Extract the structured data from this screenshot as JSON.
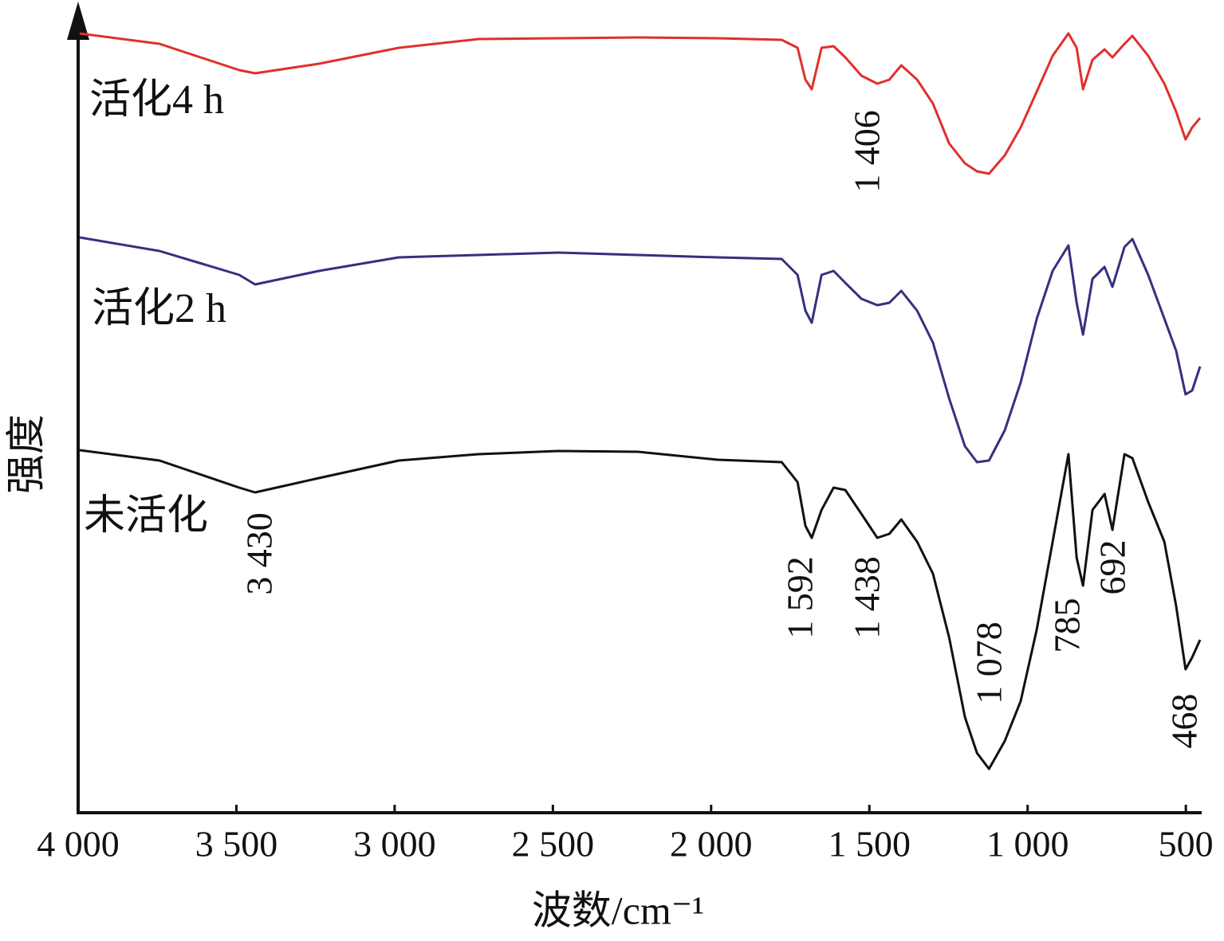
{
  "chart_data": {
    "type": "line",
    "x_label": "波数/cm⁻¹",
    "y_label": "强度",
    "x": [
      3995,
      3743,
      3491,
      3441,
      3239,
      2987,
      2735,
      2483,
      2231,
      1979,
      1777,
      1727,
      1702,
      1682,
      1651,
      1613,
      1576,
      1525,
      1475,
      1437,
      1399,
      1349,
      1299,
      1248,
      1198,
      1160,
      1122,
      1072,
      1022,
      971,
      921,
      871,
      845,
      825,
      795,
      757,
      732,
      694,
      669,
      619,
      568,
      531,
      501,
      480,
      455
    ],
    "series": [
      {
        "name": "活化4 h",
        "color": "#e0302c",
        "values": [
          97.8,
          96.5,
          93.2,
          92.8,
          94.0,
          96.0,
          97.1,
          97.2,
          97.3,
          97.2,
          97.0,
          96.0,
          92.0,
          90.8,
          96.0,
          96.2,
          94.8,
          92.5,
          91.5,
          92.0,
          93.8,
          92.0,
          89.0,
          84.0,
          81.5,
          80.5,
          80.2,
          82.5,
          86.0,
          90.5,
          95.0,
          97.8,
          96.0,
          90.8,
          94.5,
          95.8,
          94.8,
          96.5,
          97.5,
          95.0,
          91.5,
          88.0,
          84.5,
          86.0,
          87.2
        ]
      },
      {
        "name": "活化2 h",
        "color": "#35307e",
        "values": [
          72.2,
          70.5,
          67.5,
          66.3,
          68.0,
          69.7,
          70.0,
          70.3,
          70.0,
          69.7,
          69.5,
          67.5,
          63.0,
          61.5,
          67.5,
          68.0,
          66.5,
          64.5,
          63.7,
          64.0,
          65.5,
          63.0,
          59.0,
          52.0,
          46.0,
          44.0,
          44.2,
          48.0,
          54.0,
          62.0,
          68.0,
          71.2,
          64.0,
          60.0,
          67.0,
          68.5,
          66.0,
          71.0,
          72.0,
          67.5,
          62.0,
          58.0,
          52.5,
          53.0,
          56.0
        ]
      },
      {
        "name": "未活化",
        "color": "#111111",
        "values": [
          45.5,
          44.2,
          40.8,
          40.2,
          42.0,
          44.2,
          45.0,
          45.4,
          45.3,
          44.3,
          44.0,
          41.5,
          36.0,
          34.5,
          38.0,
          40.8,
          40.5,
          37.5,
          34.5,
          35.0,
          36.8,
          34.0,
          30.0,
          22.0,
          12.0,
          7.5,
          5.5,
          9.0,
          14.0,
          23.0,
          34.0,
          45.0,
          32.0,
          28.5,
          38.0,
          40.0,
          35.5,
          45.0,
          44.5,
          39.0,
          34.0,
          26.0,
          18.0,
          19.5,
          21.7
        ]
      }
    ],
    "annotations": [
      "1 406",
      "3 430",
      "1 592",
      "1 438",
      "1 078",
      "785",
      "692",
      "468"
    ],
    "xlim": [
      4000,
      450
    ],
    "ylim": [
      0,
      100
    ],
    "xticks": [
      {
        "value": 4000,
        "label": "4 000"
      },
      {
        "value": 3500,
        "label": "3 500"
      },
      {
        "value": 3000,
        "label": "3 000"
      },
      {
        "value": 2500,
        "label": "2 500"
      },
      {
        "value": 2000,
        "label": "2 000"
      },
      {
        "value": 1500,
        "label": "1 500"
      },
      {
        "value": 1000,
        "label": "1 000"
      },
      500
    ]
  }
}
